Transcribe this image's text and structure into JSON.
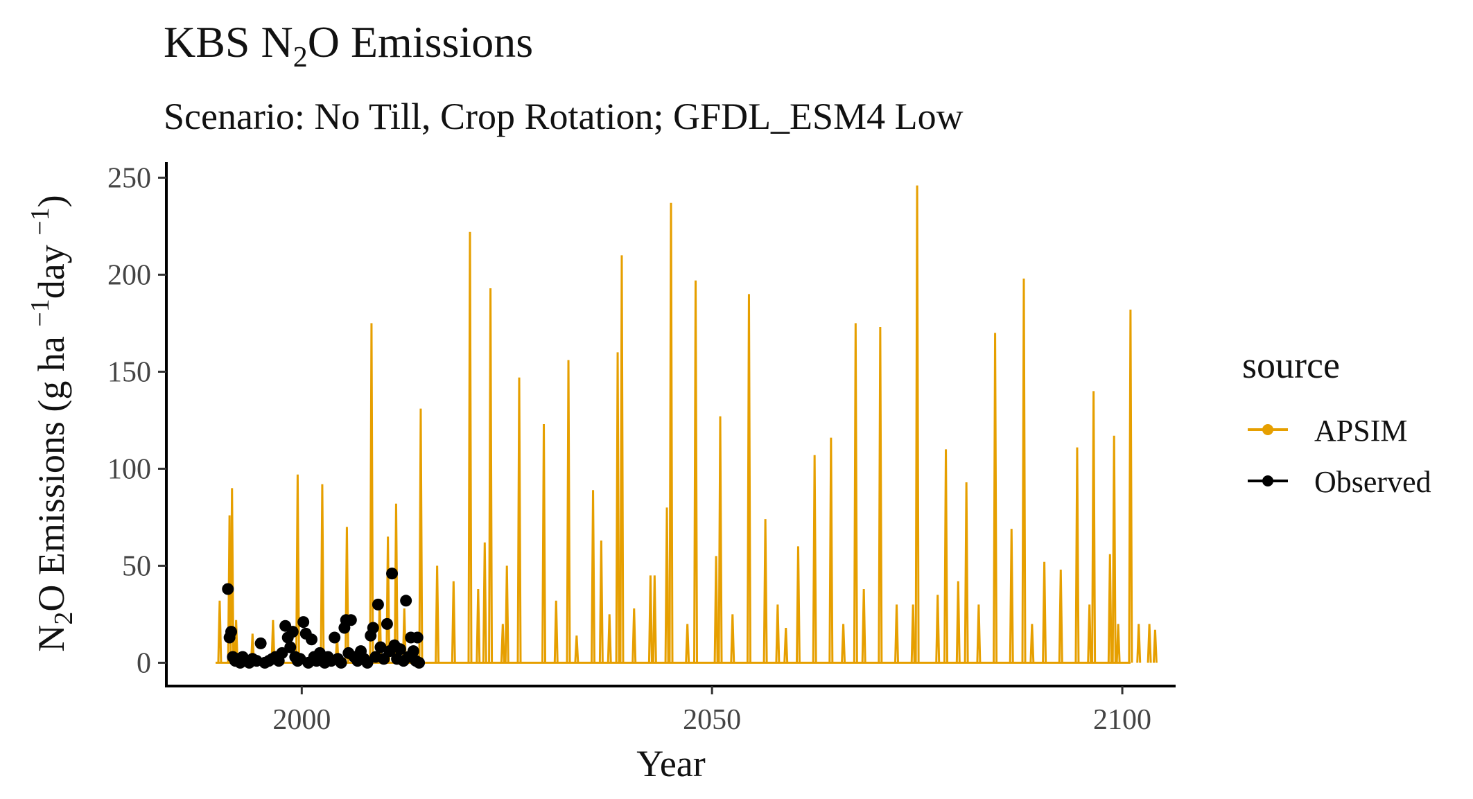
{
  "chart_data": {
    "type": "line",
    "title_prefix": "KBS N",
    "title_sub": "2",
    "title_suffix": "O Emissions",
    "subtitle": "Scenario: No Till, Crop Rotation; GFDL_ESM4 Low",
    "xlabel": "Year",
    "ylabel": {
      "prefix": "N",
      "sub": "2",
      "mid": "O Emissions (g ha ",
      "sup1": "−1",
      "mid2": "day ",
      "sup2": "−1",
      "end": ")"
    },
    "xlim": [
      1983.5,
      2106.5
    ],
    "ylim": [
      -12,
      258
    ],
    "x_ticks": [
      2000,
      2050,
      2100
    ],
    "x_tick_labels": [
      "2000",
      "2050",
      "2100"
    ],
    "y_ticks": [
      0,
      50,
      100,
      150,
      200,
      250
    ],
    "y_tick_labels": [
      "0",
      "50",
      "100",
      "150",
      "200",
      "250"
    ],
    "grid": false,
    "legend": {
      "title": "source",
      "placement": "right",
      "entries": [
        {
          "label": "APSIM",
          "color": "#E69F00"
        },
        {
          "label": "Observed",
          "color": "#000000"
        }
      ]
    },
    "series": [
      {
        "name": "APSIM",
        "style": "line",
        "color": "#E69F00",
        "x_range": [
          1989.5,
          2101
        ],
        "baseline_value": 0,
        "peaks": [
          [
            1990,
            32
          ],
          [
            1991.2,
            76
          ],
          [
            1991.5,
            90
          ],
          [
            1992,
            22
          ],
          [
            1994,
            15
          ],
          [
            1996.5,
            22
          ],
          [
            1999.5,
            97
          ],
          [
            2002.5,
            92
          ],
          [
            2004.3,
            14
          ],
          [
            2005.5,
            70
          ],
          [
            2008.5,
            175
          ],
          [
            2009.5,
            33
          ],
          [
            2010.5,
            65
          ],
          [
            2011.5,
            82
          ],
          [
            2012.5,
            28
          ],
          [
            2014.5,
            131
          ],
          [
            2016.5,
            50
          ],
          [
            2018.5,
            42
          ],
          [
            2020.5,
            222
          ],
          [
            2021.5,
            38
          ],
          [
            2022.3,
            62
          ],
          [
            2023,
            193
          ],
          [
            2024.5,
            20
          ],
          [
            2025,
            50
          ],
          [
            2026.5,
            147
          ],
          [
            2029.5,
            123
          ],
          [
            2031,
            32
          ],
          [
            2032.5,
            156
          ],
          [
            2033.5,
            14
          ],
          [
            2035.5,
            89
          ],
          [
            2036.5,
            63
          ],
          [
            2037.5,
            25
          ],
          [
            2038.5,
            160
          ],
          [
            2039,
            210
          ],
          [
            2040.5,
            28
          ],
          [
            2042.5,
            45
          ],
          [
            2043,
            45
          ],
          [
            2044.5,
            80
          ],
          [
            2045,
            237
          ],
          [
            2047,
            20
          ],
          [
            2048,
            197
          ],
          [
            2050.5,
            55
          ],
          [
            2051,
            127
          ],
          [
            2052.5,
            25
          ],
          [
            2054.5,
            190
          ],
          [
            2056.5,
            74
          ],
          [
            2058,
            30
          ],
          [
            2059,
            18
          ],
          [
            2060.5,
            60
          ],
          [
            2062.5,
            107
          ],
          [
            2064.5,
            116
          ],
          [
            2066,
            20
          ],
          [
            2067.5,
            175
          ],
          [
            2068.5,
            38
          ],
          [
            2070.5,
            173
          ],
          [
            2072.5,
            30
          ],
          [
            2074.5,
            30
          ],
          [
            2075,
            246
          ],
          [
            2077.5,
            35
          ],
          [
            2078.5,
            110
          ],
          [
            2080,
            42
          ],
          [
            2081,
            93
          ],
          [
            2082.5,
            30
          ],
          [
            2084.5,
            170
          ],
          [
            2086.5,
            69
          ],
          [
            2088,
            198
          ],
          [
            2089,
            20
          ],
          [
            2090.5,
            52
          ],
          [
            2092.5,
            48
          ],
          [
            2094.5,
            111
          ],
          [
            2096,
            30
          ],
          [
            2096.5,
            140
          ],
          [
            2098.5,
            56
          ],
          [
            2099,
            117
          ],
          [
            2099.5,
            20
          ],
          [
            2101,
            182
          ],
          [
            2102,
            20
          ],
          [
            2103.3,
            20
          ],
          [
            2104,
            17
          ]
        ]
      },
      {
        "name": "Observed",
        "style": "points",
        "color": "#000000",
        "points": [
          [
            1991,
            38
          ],
          [
            1991.2,
            13
          ],
          [
            1991.4,
            16
          ],
          [
            1991.6,
            3
          ],
          [
            1991.9,
            1
          ],
          [
            1992.2,
            2
          ],
          [
            1992.5,
            0
          ],
          [
            1992.8,
            3
          ],
          [
            1993.2,
            1
          ],
          [
            1993.6,
            0
          ],
          [
            1994,
            2
          ],
          [
            1994.5,
            1
          ],
          [
            1995,
            10
          ],
          [
            1995.5,
            0
          ],
          [
            1996,
            1
          ],
          [
            1996.4,
            2
          ],
          [
            1996.8,
            3
          ],
          [
            1997.2,
            1
          ],
          [
            1997.6,
            5
          ],
          [
            1998,
            19
          ],
          [
            1998.3,
            13
          ],
          [
            1998.6,
            8
          ],
          [
            1998.9,
            16
          ],
          [
            1999.2,
            3
          ],
          [
            1999.5,
            1
          ],
          [
            1999.8,
            2
          ],
          [
            2000.2,
            21
          ],
          [
            2000.5,
            15
          ],
          [
            2000.8,
            0
          ],
          [
            2001.2,
            12
          ],
          [
            2001.5,
            3
          ],
          [
            2001.8,
            1
          ],
          [
            2002.2,
            5
          ],
          [
            2002.5,
            2
          ],
          [
            2002.8,
            0
          ],
          [
            2003.2,
            3
          ],
          [
            2003.6,
            1
          ],
          [
            2004,
            13
          ],
          [
            2004.4,
            2
          ],
          [
            2004.8,
            0
          ],
          [
            2005.2,
            18
          ],
          [
            2005.4,
            22
          ],
          [
            2005.7,
            5
          ],
          [
            2006,
            22
          ],
          [
            2006.4,
            3
          ],
          [
            2006.8,
            1
          ],
          [
            2007.2,
            6
          ],
          [
            2007.6,
            2
          ],
          [
            2008,
            0
          ],
          [
            2008.4,
            14
          ],
          [
            2008.7,
            18
          ],
          [
            2009,
            3
          ],
          [
            2009.3,
            30
          ],
          [
            2009.6,
            8
          ],
          [
            2010,
            2
          ],
          [
            2010.4,
            20
          ],
          [
            2010.7,
            6
          ],
          [
            2011,
            46
          ],
          [
            2011.3,
            9
          ],
          [
            2011.6,
            2
          ],
          [
            2012,
            7
          ],
          [
            2012.4,
            1
          ],
          [
            2012.7,
            32
          ],
          [
            2013,
            3
          ],
          [
            2013.3,
            13
          ],
          [
            2013.6,
            6
          ],
          [
            2013.9,
            1
          ],
          [
            2014.1,
            13
          ],
          [
            2014.3,
            0
          ]
        ]
      }
    ]
  }
}
